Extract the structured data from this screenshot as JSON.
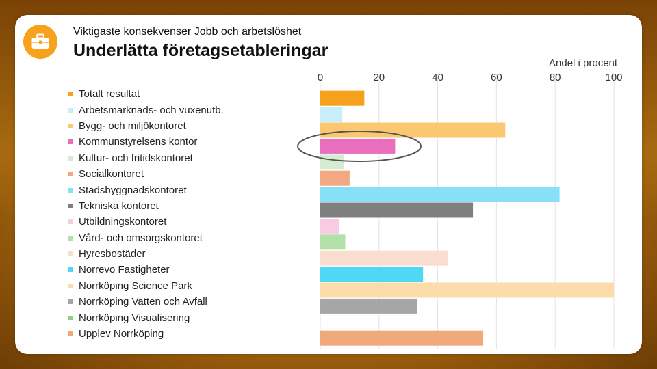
{
  "header": {
    "subtitle": "Viktigaste konsekvenser Jobb och arbetslöshet",
    "title": "Underlätta företagsetableringar",
    "icon": "briefcase-icon"
  },
  "chart_data": {
    "type": "bar",
    "orientation": "horizontal",
    "xlabel": "Andel i procent",
    "xlim": [
      0,
      100
    ],
    "xticks": [
      0,
      20,
      40,
      60,
      80,
      100
    ],
    "grid": true,
    "highlight": "Kommunstyrelsens kontor",
    "categories": [
      "Totalt resultat",
      "Arbetsmarknads- och vuxenutb.",
      "Bygg- och miljökontoret",
      "Kommunstyrelsens kontor",
      "Kultur- och fritidskontoret",
      "Socialkontoret",
      "Stadsbyggnadskontoret",
      "Tekniska kontoret",
      "Utbildningskontoret",
      "Vård- och omsorgskontoret",
      "Hyresbostäder",
      "Norrevo Fastigheter",
      "Norrköping Science Park",
      "Norrköping Vatten och Avfall",
      "Norrköping Visualisering",
      "Upplev Norrköping"
    ],
    "values": [
      15,
      7.5,
      63,
      25.5,
      8,
      10,
      81.5,
      52,
      6.5,
      8.5,
      43.5,
      35,
      100,
      33,
      0,
      55.5
    ],
    "colors": [
      "#f5a11c",
      "#c9eefb",
      "#fbc872",
      "#e96fbe",
      "#d6ecd2",
      "#f2a881",
      "#88e0f7",
      "#7f7f7f",
      "#f7cbe3",
      "#b3dfa8",
      "#f9ded0",
      "#4fd7f5",
      "#fbdcab",
      "#a6a6a6",
      "#8fd083",
      "#f2a97a"
    ]
  }
}
